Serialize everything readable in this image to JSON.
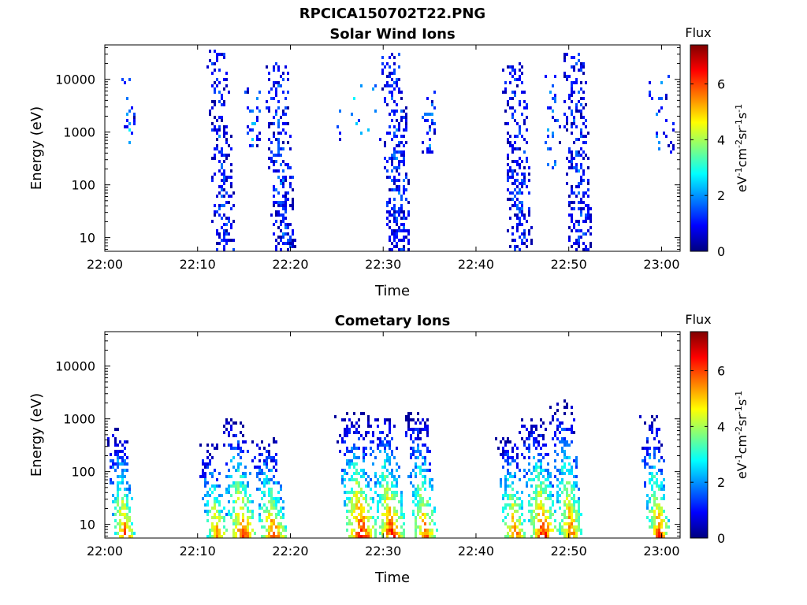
{
  "figure": {
    "title": "RPCICA150702T22.PNG"
  },
  "colorbar_stops": [
    "#00007f",
    "#0000ff",
    "#007fff",
    "#00ffff",
    "#7fff7f",
    "#ffff00",
    "#ff7f00",
    "#ff0000",
    "#7f0000"
  ],
  "chart_data": [
    {
      "type": "heatmap",
      "title": "Solar Wind Ions",
      "xlabel": "Time",
      "ylabel": "Energy (eV)",
      "x_ticks": [
        "22:00",
        "22:10",
        "22:20",
        "22:30",
        "22:40",
        "22:50",
        "23:00"
      ],
      "x_tick_minutes": [
        0,
        10,
        20,
        30,
        40,
        50,
        60
      ],
      "xlim_minutes": [
        0,
        62
      ],
      "y_scale": "log",
      "y_ticks": [
        "10",
        "100",
        "1000",
        "10000"
      ],
      "y_tick_values": [
        10,
        100,
        1000,
        10000
      ],
      "ylim": [
        5.5,
        45000
      ],
      "colorbar": {
        "title": "Flux",
        "label": "eV-1cm-2sr-1s-1",
        "ticks": [
          "0",
          "2",
          "4",
          "6"
        ],
        "tick_values": [
          0,
          2,
          4,
          6
        ],
        "range": [
          0,
          7.4
        ],
        "colormap": "jet"
      },
      "bursts": [
        {
          "t": 2.6,
          "w": 0.7,
          "emin": 600,
          "emax": 16000,
          "density": 0.35,
          "peak": 2.6,
          "skew": 0.3
        },
        {
          "t": 12.9,
          "w": 1.2,
          "emin": 5.5,
          "emax": 36000,
          "density": 0.55,
          "peak": 1.6,
          "skew": 0.6
        },
        {
          "t": 16.0,
          "w": 0.9,
          "emin": 500,
          "emax": 8000,
          "density": 0.25,
          "peak": 2.3,
          "skew": 0.2
        },
        {
          "t": 19.3,
          "w": 1.3,
          "emin": 5.5,
          "emax": 22000,
          "density": 0.55,
          "peak": 1.7,
          "skew": 0.6
        },
        {
          "t": 27.5,
          "w": 2.5,
          "emin": 700,
          "emax": 8000,
          "density": 0.12,
          "peak": 2.6,
          "skew": 0.2
        },
        {
          "t": 31.8,
          "w": 1.3,
          "emin": 5.5,
          "emax": 32000,
          "density": 0.6,
          "peak": 1.7,
          "skew": 0.6
        },
        {
          "t": 35.0,
          "w": 0.8,
          "emin": 400,
          "emax": 13000,
          "density": 0.3,
          "peak": 2.5,
          "skew": 0.2
        },
        {
          "t": 44.8,
          "w": 1.3,
          "emin": 5.5,
          "emax": 20000,
          "density": 0.55,
          "peak": 1.6,
          "skew": 0.6
        },
        {
          "t": 48.3,
          "w": 1.0,
          "emin": 200,
          "emax": 12000,
          "density": 0.2,
          "peak": 2.2,
          "skew": 0.2
        },
        {
          "t": 51.3,
          "w": 1.3,
          "emin": 5.5,
          "emax": 32000,
          "density": 0.55,
          "peak": 1.6,
          "skew": 0.6
        },
        {
          "t": 60.0,
          "w": 1.4,
          "emin": 400,
          "emax": 12000,
          "density": 0.18,
          "peak": 2.3,
          "skew": 0.2
        }
      ]
    },
    {
      "type": "heatmap",
      "title": "Cometary Ions",
      "xlabel": "Time",
      "ylabel": "Energy (eV)",
      "x_ticks": [
        "22:00",
        "22:10",
        "22:20",
        "22:30",
        "22:40",
        "22:50",
        "23:00"
      ],
      "x_tick_minutes": [
        0,
        10,
        20,
        30,
        40,
        50,
        60
      ],
      "xlim_minutes": [
        0,
        62
      ],
      "y_scale": "log",
      "y_ticks": [
        "10",
        "100",
        "1000",
        "10000"
      ],
      "y_tick_values": [
        10,
        100,
        1000,
        10000
      ],
      "ylim": [
        5.5,
        45000
      ],
      "colorbar": {
        "title": "Flux",
        "label": "eV-1cm-2sr-1s-1",
        "ticks": [
          "0",
          "2",
          "4",
          "6"
        ],
        "tick_values": [
          0,
          2,
          4,
          6
        ],
        "range": [
          0,
          7.4
        ],
        "colormap": "jet"
      },
      "bursts": [
        {
          "t": 2.2,
          "w": 1.1,
          "emin": 5.5,
          "emax": 650,
          "density": 0.75,
          "peak": 6.2,
          "skew": 0.9
        },
        {
          "t": 12.2,
          "w": 1.2,
          "emin": 5.5,
          "emax": 320,
          "density": 0.75,
          "peak": 5.8,
          "skew": 0.9
        },
        {
          "t": 15.0,
          "w": 1.4,
          "emin": 5.5,
          "emax": 1000,
          "density": 0.75,
          "peak": 6.4,
          "skew": 0.9
        },
        {
          "t": 18.3,
          "w": 1.4,
          "emin": 5.5,
          "emax": 420,
          "density": 0.75,
          "peak": 6.3,
          "skew": 0.9
        },
        {
          "t": 27.8,
          "w": 1.6,
          "emin": 5.5,
          "emax": 1300,
          "density": 0.8,
          "peak": 6.8,
          "skew": 0.9
        },
        {
          "t": 31.0,
          "w": 1.5,
          "emin": 5.5,
          "emax": 1200,
          "density": 0.8,
          "peak": 6.6,
          "skew": 0.9
        },
        {
          "t": 34.6,
          "w": 1.3,
          "emin": 5.5,
          "emax": 1300,
          "density": 0.75,
          "peak": 6.0,
          "skew": 0.9
        },
        {
          "t": 44.3,
          "w": 1.2,
          "emin": 5.5,
          "emax": 480,
          "density": 0.75,
          "peak": 6.2,
          "skew": 0.9
        },
        {
          "t": 47.4,
          "w": 1.5,
          "emin": 5.5,
          "emax": 1000,
          "density": 0.8,
          "peak": 6.7,
          "skew": 0.9
        },
        {
          "t": 50.3,
          "w": 1.3,
          "emin": 5.5,
          "emax": 2200,
          "density": 0.75,
          "peak": 6.0,
          "skew": 0.9
        },
        {
          "t": 59.8,
          "w": 1.2,
          "emin": 5.5,
          "emax": 1100,
          "density": 0.75,
          "peak": 6.1,
          "skew": 0.9
        }
      ]
    }
  ]
}
